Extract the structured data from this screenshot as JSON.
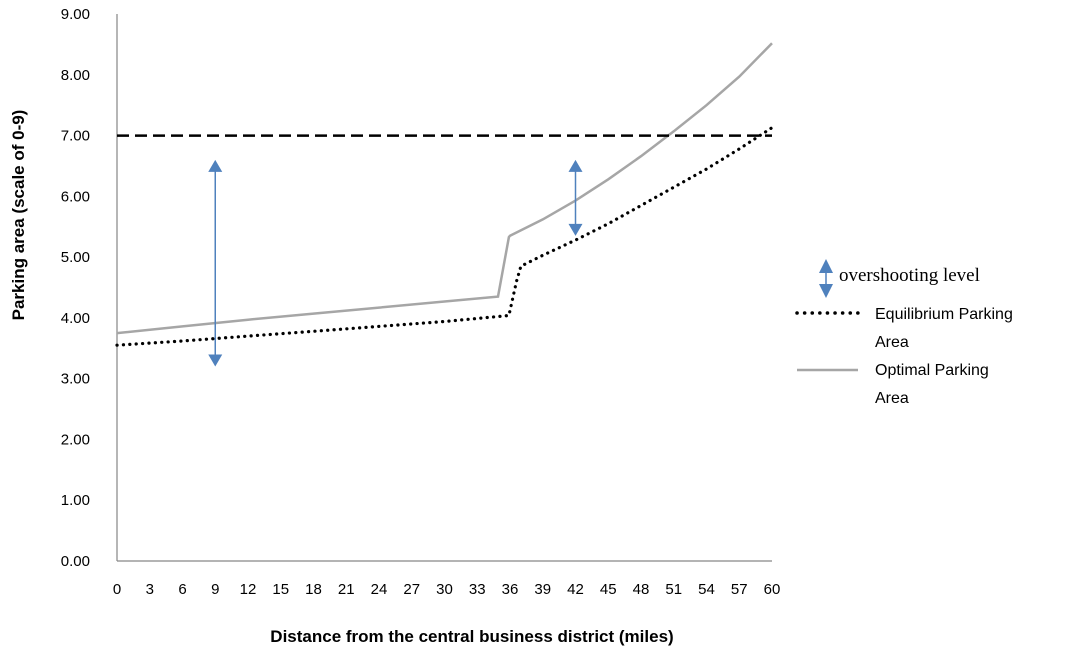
{
  "chart_data": {
    "type": "line",
    "xlabel": "Distance from the central business district (miles)",
    "ylabel": "Parking area (scale of 0-9)",
    "x_ticks": [
      "0",
      "3",
      "6",
      "9",
      "12",
      "15",
      "18",
      "21",
      "24",
      "27",
      "30",
      "33",
      "36",
      "39",
      "42",
      "45",
      "48",
      "51",
      "54",
      "57",
      "60"
    ],
    "y_ticks": [
      "0.00",
      "1.00",
      "2.00",
      "3.00",
      "4.00",
      "5.00",
      "6.00",
      "7.00",
      "8.00",
      "9.00"
    ],
    "xlim": [
      0,
      60
    ],
    "ylim": [
      0,
      9
    ],
    "grid": false,
    "legend_position": "right",
    "series": [
      {
        "name": "Equilibrium Parking Area",
        "style": "dotted",
        "color": "#000000",
        "x": [
          0,
          6,
          12,
          18,
          24,
          30,
          35.9,
          36.6,
          37,
          39,
          42,
          45,
          48,
          51,
          54,
          57,
          60
        ],
        "y": [
          3.55,
          3.62,
          3.7,
          3.78,
          3.86,
          3.94,
          4.04,
          4.6,
          4.85,
          5.03,
          5.28,
          5.55,
          5.85,
          6.15,
          6.45,
          6.78,
          7.13
        ]
      },
      {
        "name": "Optimal Parking Area",
        "style": "solid",
        "color": "#a6a6a6",
        "x": [
          0,
          6,
          12,
          18,
          24,
          30,
          34.9,
          35.9,
          36,
          39,
          42,
          45,
          48,
          51,
          54,
          57,
          60
        ],
        "y": [
          3.75,
          3.86,
          3.97,
          4.07,
          4.17,
          4.27,
          4.35,
          5.33,
          5.35,
          5.62,
          5.93,
          6.28,
          6.66,
          7.07,
          7.5,
          7.97,
          8.52
        ]
      },
      {
        "name": "",
        "style": "dashed",
        "color": "#000000",
        "x": [
          0,
          60
        ],
        "y": [
          7.0,
          7.0
        ]
      }
    ],
    "arrows": [
      {
        "x": 9,
        "y_from": 3.2,
        "y_to": 6.6
      },
      {
        "x": 42,
        "y_from": 5.35,
        "y_to": 6.6
      }
    ],
    "legend": {
      "arrow_label": "overshooting level",
      "dotted_label_lines": [
        "Equilibrium Parking",
        "Area"
      ],
      "solid_label_lines": [
        "Optimal Parking",
        "Area"
      ]
    },
    "colors": {
      "arrow": "#4f81bd",
      "axis": "#868686"
    }
  }
}
